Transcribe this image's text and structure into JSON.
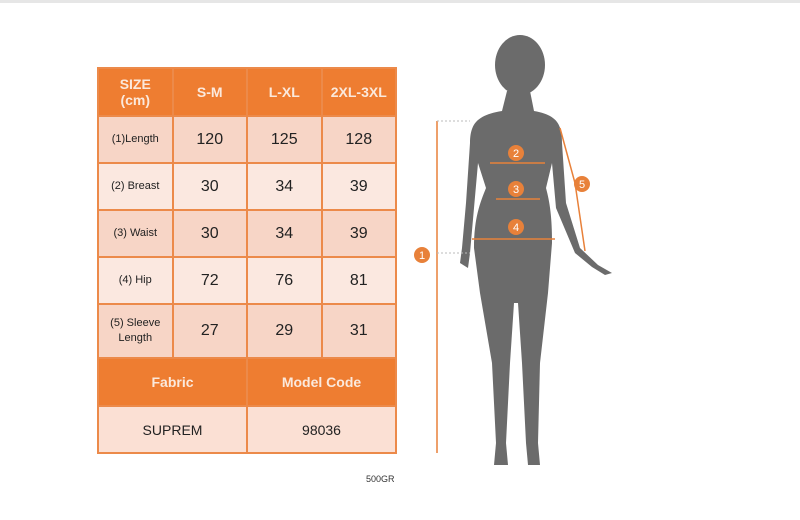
{
  "table": {
    "header": [
      "SIZE\n(cm)",
      "S-M",
      "L-XL",
      "2XL-3XL"
    ],
    "header_size_line1": "SIZE",
    "header_size_line2": "(cm)",
    "rows": [
      {
        "label": "(1)Length",
        "values": [
          "120",
          "125",
          "128"
        ]
      },
      {
        "label": "(2) Breast",
        "values": [
          "30",
          "34",
          "39"
        ]
      },
      {
        "label": "(3) Waist",
        "values": [
          "30",
          "34",
          "39"
        ]
      },
      {
        "label": "(4) Hip",
        "values": [
          "72",
          "76",
          "81"
        ]
      },
      {
        "label_line1": "(5) Sleeve",
        "label_line2": "Length",
        "values": [
          "27",
          "29",
          "31"
        ]
      }
    ],
    "footer_headers": [
      "Fabric",
      "Model Code"
    ],
    "footer_values": [
      "SUPREM",
      "98036"
    ]
  },
  "weight_note": "500GR",
  "figure": {
    "markers": [
      "1",
      "2",
      "3",
      "4",
      "5"
    ],
    "marker_color": "#e8813a",
    "silhouette_color": "#6b6b6b"
  },
  "colors": {
    "header": "#ee7d31",
    "border": "#ec8a4a",
    "cell_dark": "#f7d5c6",
    "cell_light": "#fbe8e0"
  }
}
